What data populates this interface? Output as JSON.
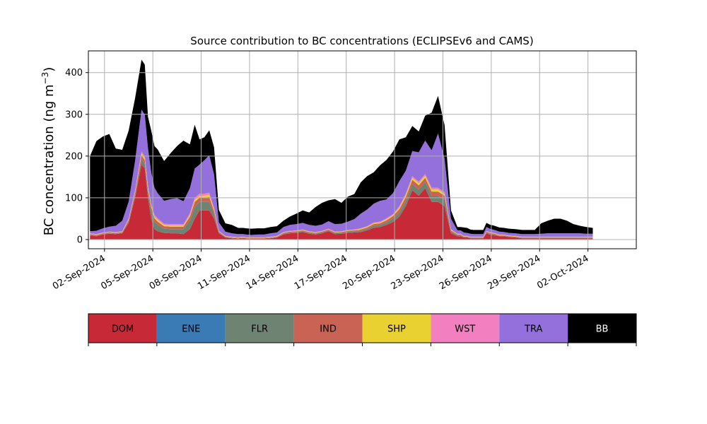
{
  "chart_data": {
    "type": "area",
    "stacked": true,
    "title": "Source contribution to BC concentrations (ECLIPSEv6 and CAMS)",
    "ylabel": "BC concentration (ng m",
    "ylabel_sup": "−3",
    "ylabel_close": ")",
    "ylim": [
      -22,
      452
    ],
    "yticks": [
      0,
      100,
      200,
      300,
      400
    ],
    "xlim": [
      0,
      34
    ],
    "xticks": [
      {
        "day": 1,
        "label": "02-Sep-2024"
      },
      {
        "day": 4,
        "label": "05-Sep-2024"
      },
      {
        "day": 7,
        "label": "08-Sep-2024"
      },
      {
        "day": 10,
        "label": "11-Sep-2024"
      },
      {
        "day": 13,
        "label": "14-Sep-2024"
      },
      {
        "day": 16,
        "label": "17-Sep-2024"
      },
      {
        "day": 19,
        "label": "20-Sep-2024"
      },
      {
        "day": 22,
        "label": "23-Sep-2024"
      },
      {
        "day": 25,
        "label": "26-Sep-2024"
      },
      {
        "day": 28,
        "label": "29-Sep-2024"
      },
      {
        "day": 31,
        "label": "02-Oct-2024"
      }
    ],
    "grid": true,
    "x": [
      0.1,
      0.5,
      0.9,
      1.3,
      1.7,
      2.1,
      2.5,
      2.9,
      3.3,
      3.5,
      3.7,
      3.9,
      4.1,
      4.3,
      4.7,
      5.1,
      5.5,
      5.9,
      6.3,
      6.6,
      6.9,
      7.2,
      7.5,
      7.8,
      8.1,
      8.5,
      8.9,
      9.3,
      9.6,
      9.8,
      10.1,
      10.5,
      10.9,
      11.3,
      11.7,
      12.1,
      12.5,
      12.9,
      13.3,
      13.7,
      14.1,
      14.5,
      14.9,
      15.3,
      15.7,
      16.1,
      16.5,
      16.9,
      17.3,
      17.7,
      18.1,
      18.5,
      18.9,
      19.3,
      19.7,
      20.1,
      20.5,
      20.9,
      21.3,
      21.7,
      22.1,
      22.5,
      22.9,
      23.1,
      23.3,
      23.5,
      23.7,
      23.9,
      24.1,
      24.3,
      24.5,
      24.7,
      24.9,
      25.2,
      25.5,
      25.8,
      26.1,
      26.5,
      26.9,
      27.3,
      27.7,
      28.1,
      28.5,
      28.9,
      29.3,
      29.7,
      30.1,
      30.5,
      30.9,
      31.3
    ],
    "series": [
      {
        "name": "DOM",
        "color": "#c72a36",
        "values": [
          10,
          8,
          12,
          14,
          13,
          15,
          40,
          100,
          180,
          170,
          100,
          50,
          25,
          20,
          16,
          15,
          15,
          13,
          25,
          50,
          70,
          70,
          70,
          50,
          15,
          5,
          3,
          2,
          3,
          2,
          2,
          2,
          2,
          3,
          5,
          12,
          15,
          16,
          18,
          14,
          12,
          15,
          20,
          13,
          14,
          16,
          17,
          18,
          22,
          28,
          30,
          35,
          42,
          55,
          80,
          118,
          105,
          123,
          90,
          90,
          80,
          15,
          8,
          8,
          5,
          5,
          3,
          3,
          3,
          3,
          3,
          15,
          12,
          10,
          8,
          8,
          6,
          5,
          3,
          3,
          3,
          3,
          3,
          3,
          3,
          3,
          3,
          3,
          3,
          3
        ]
      },
      {
        "name": "ENE",
        "color": "#3a7ab5",
        "values": [
          0,
          0,
          0,
          0,
          0,
          0,
          0,
          0,
          0,
          0,
          0,
          0,
          0,
          0,
          0,
          0,
          0,
          0,
          0,
          0,
          0,
          0,
          0,
          0,
          0,
          0,
          0,
          0,
          0,
          0,
          0,
          0,
          0,
          0,
          0,
          0,
          0,
          0,
          0,
          0,
          0,
          0,
          0,
          0,
          0,
          0,
          0,
          0,
          0,
          0,
          0,
          0,
          0,
          0,
          0,
          0,
          0,
          0,
          0,
          0,
          0,
          0,
          0,
          0,
          0,
          0,
          0,
          0,
          0,
          0,
          0,
          0,
          0,
          0,
          0,
          0,
          0,
          0,
          0,
          0,
          0,
          0,
          0,
          0,
          0,
          0,
          0,
          0,
          0,
          0
        ]
      },
      {
        "name": "FLR",
        "color": "#6e8372",
        "values": [
          1,
          1,
          1,
          1,
          1,
          1,
          3,
          5,
          12,
          12,
          12,
          20,
          18,
          15,
          10,
          10,
          10,
          12,
          20,
          28,
          20,
          20,
          20,
          10,
          2,
          1,
          1,
          1,
          1,
          1,
          1,
          1,
          1,
          1,
          1,
          2,
          2,
          2,
          2,
          2,
          2,
          2,
          2,
          2,
          2,
          3,
          3,
          3,
          4,
          5,
          5,
          6,
          8,
          10,
          12,
          15,
          15,
          15,
          15,
          15,
          15,
          4,
          2,
          2,
          1,
          1,
          1,
          1,
          1,
          1,
          1,
          2,
          2,
          2,
          1,
          1,
          1,
          1,
          1,
          1,
          1,
          1,
          1,
          1,
          1,
          1,
          1,
          1,
          1,
          1
        ]
      },
      {
        "name": "IND",
        "color": "#c96455",
        "values": [
          2,
          2,
          2,
          2,
          2,
          2,
          4,
          8,
          10,
          8,
          8,
          8,
          8,
          8,
          6,
          6,
          6,
          6,
          10,
          12,
          10,
          10,
          12,
          8,
          2,
          1,
          1,
          1,
          1,
          1,
          1,
          1,
          1,
          1,
          1,
          2,
          2,
          2,
          2,
          2,
          2,
          2,
          2,
          2,
          2,
          2,
          2,
          3,
          3,
          4,
          4,
          5,
          6,
          8,
          10,
          10,
          10,
          10,
          10,
          10,
          10,
          3,
          2,
          2,
          1,
          1,
          1,
          1,
          1,
          1,
          1,
          2,
          2,
          2,
          1,
          1,
          1,
          1,
          1,
          1,
          1,
          1,
          1,
          1,
          1,
          1,
          1,
          1,
          1,
          1
        ]
      },
      {
        "name": "SHP",
        "color": "#e8d130",
        "values": [
          1,
          1,
          1,
          1,
          1,
          1,
          2,
          3,
          5,
          5,
          5,
          4,
          4,
          4,
          3,
          3,
          3,
          3,
          4,
          5,
          5,
          5,
          5,
          4,
          1,
          1,
          1,
          1,
          1,
          1,
          1,
          1,
          1,
          1,
          1,
          1,
          1,
          1,
          1,
          1,
          1,
          1,
          1,
          1,
          1,
          1,
          1,
          2,
          2,
          2,
          2,
          3,
          3,
          4,
          5,
          5,
          5,
          5,
          5,
          5,
          5,
          2,
          1,
          1,
          1,
          1,
          1,
          1,
          1,
          1,
          1,
          1,
          1,
          1,
          1,
          1,
          1,
          1,
          1,
          1,
          1,
          1,
          1,
          1,
          1,
          1,
          1,
          1,
          1,
          1
        ]
      },
      {
        "name": "WST",
        "color": "#f27fbf",
        "values": [
          1,
          1,
          1,
          1,
          1,
          1,
          2,
          3,
          4,
          4,
          4,
          4,
          4,
          4,
          3,
          3,
          3,
          3,
          4,
          5,
          5,
          5,
          5,
          4,
          1,
          1,
          1,
          1,
          1,
          1,
          1,
          1,
          1,
          1,
          1,
          1,
          1,
          1,
          1,
          1,
          1,
          1,
          1,
          1,
          1,
          1,
          1,
          1,
          1,
          2,
          2,
          2,
          2,
          3,
          3,
          4,
          4,
          4,
          4,
          4,
          4,
          1,
          1,
          1,
          1,
          1,
          1,
          1,
          1,
          1,
          1,
          1,
          1,
          1,
          1,
          1,
          1,
          1,
          1,
          1,
          1,
          1,
          1,
          1,
          1,
          1,
          1,
          1,
          1,
          1
        ]
      },
      {
        "name": "TRA",
        "color": "#9370db",
        "values": [
          5,
          8,
          10,
          12,
          15,
          25,
          40,
          70,
          100,
          100,
          90,
          75,
          65,
          60,
          55,
          60,
          62,
          55,
          60,
          70,
          70,
          80,
          90,
          80,
          20,
          10,
          8,
          7,
          6,
          6,
          5,
          6,
          6,
          8,
          8,
          12,
          14,
          15,
          16,
          15,
          15,
          15,
          18,
          18,
          18,
          20,
          25,
          35,
          40,
          45,
          50,
          45,
          50,
          60,
          55,
          60,
          70,
          80,
          90,
          130,
          80,
          25,
          8,
          8,
          8,
          7,
          7,
          6,
          6,
          6,
          6,
          9,
          8,
          7,
          7,
          6,
          6,
          6,
          6,
          6,
          6,
          7,
          8,
          8,
          8,
          8,
          8,
          8,
          7,
          7
        ]
      },
      {
        "name": "BB",
        "color": "#000000",
        "values": [
          180,
          215,
          220,
          222,
          185,
          170,
          170,
          150,
          120,
          120,
          75,
          100,
          100,
          105,
          95,
          110,
          125,
          145,
          105,
          105,
          60,
          55,
          60,
          65,
          30,
          20,
          20,
          15,
          15,
          15,
          15,
          15,
          15,
          15,
          15,
          15,
          20,
          25,
          30,
          30,
          45,
          52,
          50,
          60,
          50,
          60,
          60,
          75,
          80,
          75,
          85,
          95,
          100,
          100,
          80,
          60,
          50,
          60,
          90,
          90,
          80,
          20,
          8,
          8,
          12,
          12,
          10,
          10,
          10,
          10,
          10,
          10,
          10,
          10,
          10,
          10,
          10,
          10,
          10,
          10,
          10,
          25,
          30,
          35,
          35,
          30,
          22,
          18,
          16,
          14
        ]
      }
    ]
  }
}
